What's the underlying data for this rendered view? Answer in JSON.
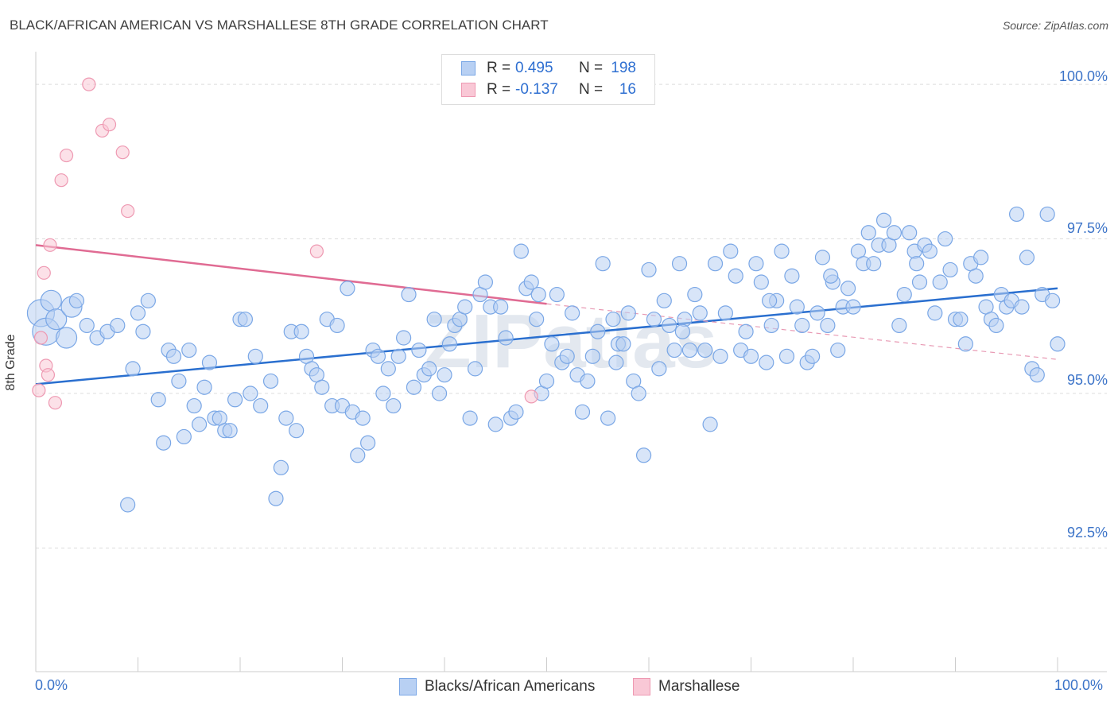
{
  "title": "BLACK/AFRICAN AMERICAN VS MARSHALLESE 8TH GRADE CORRELATION CHART",
  "source": "Source: ZipAtlas.com",
  "watermark": "ZIPatlas",
  "legend": {
    "rows": [
      {
        "r_label": "R =",
        "r_value": "0.495",
        "n_label": "N =",
        "n_value": "198",
        "color": "#7aa7e6"
      },
      {
        "r_label": "R =",
        "r_value": "-0.137",
        "n_label": "N =",
        "n_value": "16",
        "color": "#ee99b2"
      }
    ]
  },
  "bottom_legend": [
    "Blacks/African Americans",
    "Marshallese"
  ],
  "chart_data": {
    "type": "scatter",
    "title": "BLACK/AFRICAN AMERICAN VS MARSHALLESE 8TH GRADE CORRELATION CHART",
    "xlabel": "",
    "ylabel": "8th Grade",
    "xlim": [
      0,
      100
    ],
    "ylim": [
      90.5,
      100.4
    ],
    "x_tick_labels": [
      "0.0%",
      "100.0%"
    ],
    "y_ticks": [
      92.5,
      95.0,
      97.5,
      100.0
    ],
    "y_tick_labels": [
      "92.5%",
      "95.0%",
      "97.5%",
      "100.0%"
    ],
    "series": [
      {
        "name": "Blacks/African Americans",
        "color": "#7aa7e6",
        "fill": "#b8d0f3",
        "trend": {
          "x": [
            0,
            100
          ],
          "y": [
            95.15,
            96.7
          ]
        },
        "points": [
          [
            0.5,
            96.3,
            3
          ],
          [
            1,
            96.0,
            3
          ],
          [
            1.5,
            96.5,
            2
          ],
          [
            2,
            96.2,
            2
          ],
          [
            3,
            95.9,
            2
          ],
          [
            3.5,
            96.4,
            2
          ],
          [
            4,
            96.5,
            1
          ],
          [
            5,
            96.1,
            1
          ],
          [
            6,
            95.9,
            1
          ],
          [
            7,
            96.0,
            1
          ],
          [
            8,
            96.1,
            1
          ],
          [
            9,
            93.2,
            1
          ],
          [
            9.5,
            95.4,
            1
          ],
          [
            10,
            96.3,
            1
          ],
          [
            10.5,
            96.0,
            1
          ],
          [
            11,
            96.5,
            1
          ],
          [
            12,
            94.9,
            1
          ],
          [
            12.5,
            94.2,
            1
          ],
          [
            13,
            95.7,
            1
          ],
          [
            13.5,
            95.6,
            1
          ],
          [
            14,
            95.2,
            1
          ],
          [
            14.5,
            94.3,
            1
          ],
          [
            15,
            95.7,
            1
          ],
          [
            15.5,
            94.8,
            1
          ],
          [
            16,
            94.5,
            1
          ],
          [
            16.5,
            95.1,
            1
          ],
          [
            17,
            95.5,
            1
          ],
          [
            17.5,
            94.6,
            1
          ],
          [
            18,
            94.6,
            1
          ],
          [
            18.5,
            94.4,
            1
          ],
          [
            19,
            94.4,
            1
          ],
          [
            19.5,
            94.9,
            1
          ],
          [
            20,
            96.2,
            1
          ],
          [
            20.5,
            96.2,
            1
          ],
          [
            21,
            95.0,
            1
          ],
          [
            21.5,
            95.6,
            1
          ],
          [
            22,
            94.8,
            1
          ],
          [
            23,
            95.2,
            1
          ],
          [
            23.5,
            93.3,
            1
          ],
          [
            24,
            93.8,
            1
          ],
          [
            24.5,
            94.6,
            1
          ],
          [
            25,
            96.0,
            1
          ],
          [
            25.5,
            94.4,
            1
          ],
          [
            26,
            96.0,
            1
          ],
          [
            26.5,
            95.6,
            1
          ],
          [
            27,
            95.4,
            1
          ],
          [
            27.5,
            95.3,
            1
          ],
          [
            28,
            95.1,
            1
          ],
          [
            28.5,
            96.2,
            1
          ],
          [
            29,
            94.8,
            1
          ],
          [
            29.5,
            96.1,
            1
          ],
          [
            30,
            94.8,
            1
          ],
          [
            30.5,
            96.7,
            1
          ],
          [
            31,
            94.7,
            1
          ],
          [
            31.5,
            94.0,
            1
          ],
          [
            32,
            94.6,
            1
          ],
          [
            32.5,
            94.2,
            1
          ],
          [
            33,
            95.7,
            1
          ],
          [
            33.5,
            95.6,
            1
          ],
          [
            34,
            95.0,
            1
          ],
          [
            34.5,
            95.4,
            1
          ],
          [
            35,
            94.8,
            1
          ],
          [
            35.5,
            95.6,
            1
          ],
          [
            36,
            95.9,
            1
          ],
          [
            36.5,
            96.6,
            1
          ],
          [
            37,
            95.1,
            1
          ],
          [
            37.5,
            95.7,
            1
          ],
          [
            38,
            95.3,
            1
          ],
          [
            38.5,
            95.4,
            1
          ],
          [
            39,
            96.2,
            1
          ],
          [
            39.5,
            95.0,
            1
          ],
          [
            40,
            95.3,
            1
          ],
          [
            40.5,
            95.8,
            1
          ],
          [
            41,
            96.1,
            1
          ],
          [
            41.5,
            96.2,
            1
          ],
          [
            42,
            96.4,
            1
          ],
          [
            42.5,
            94.6,
            1
          ],
          [
            43,
            95.4,
            1
          ],
          [
            43.5,
            96.6,
            1
          ],
          [
            44,
            96.8,
            1
          ],
          [
            44.5,
            96.4,
            1
          ],
          [
            45,
            94.5,
            1
          ],
          [
            45.5,
            96.4,
            1
          ],
          [
            46,
            95.9,
            1
          ],
          [
            46.5,
            94.6,
            1
          ],
          [
            47,
            94.7,
            1
          ],
          [
            47.5,
            97.3,
            1
          ],
          [
            48,
            96.7,
            1
          ],
          [
            48.5,
            96.8,
            1
          ],
          [
            49,
            96.2,
            1
          ],
          [
            49.5,
            95.0,
            1
          ],
          [
            50,
            95.2,
            1
          ],
          [
            50.5,
            95.8,
            1
          ],
          [
            51,
            96.6,
            1
          ],
          [
            51.5,
            95.5,
            1
          ],
          [
            52,
            95.6,
            1
          ],
          [
            52.5,
            96.3,
            1
          ],
          [
            53,
            95.3,
            1
          ],
          [
            53.5,
            94.7,
            1
          ],
          [
            54,
            95.2,
            1
          ],
          [
            54.5,
            95.6,
            1
          ],
          [
            55,
            96.0,
            1
          ],
          [
            55.5,
            97.1,
            1
          ],
          [
            56,
            94.6,
            1
          ],
          [
            56.5,
            96.2,
            1
          ],
          [
            57,
            95.8,
            1
          ],
          [
            57.5,
            95.8,
            1
          ],
          [
            58,
            96.3,
            1
          ],
          [
            58.5,
            95.2,
            1
          ],
          [
            59,
            95.0,
            1
          ],
          [
            59.5,
            94.0,
            1
          ],
          [
            60,
            97.0,
            1
          ],
          [
            60.5,
            96.2,
            1
          ],
          [
            61,
            95.4,
            1
          ],
          [
            61.5,
            96.5,
            1
          ],
          [
            62,
            96.1,
            1
          ],
          [
            62.5,
            95.7,
            1
          ],
          [
            63,
            97.1,
            1
          ],
          [
            63.5,
            96.2,
            1
          ],
          [
            64,
            95.7,
            1
          ],
          [
            64.5,
            96.6,
            1
          ],
          [
            65,
            96.3,
            1
          ],
          [
            65.5,
            95.7,
            1
          ],
          [
            66,
            94.5,
            1
          ],
          [
            66.5,
            97.1,
            1
          ],
          [
            67,
            95.6,
            1
          ],
          [
            67.5,
            96.3,
            1
          ],
          [
            68,
            97.3,
            1
          ],
          [
            68.5,
            96.9,
            1
          ],
          [
            69,
            95.7,
            1
          ],
          [
            69.5,
            96.0,
            1
          ],
          [
            70,
            95.6,
            1
          ],
          [
            70.5,
            97.1,
            1
          ],
          [
            71,
            96.8,
            1
          ],
          [
            71.5,
            95.5,
            1
          ],
          [
            72,
            96.1,
            1
          ],
          [
            72.5,
            96.5,
            1
          ],
          [
            73,
            97.3,
            1
          ],
          [
            73.5,
            95.6,
            1
          ],
          [
            74,
            96.9,
            1
          ],
          [
            74.5,
            96.4,
            1
          ],
          [
            75,
            96.1,
            1
          ],
          [
            75.5,
            95.5,
            1
          ],
          [
            76,
            95.6,
            1
          ],
          [
            76.5,
            96.3,
            1
          ],
          [
            77,
            97.2,
            1
          ],
          [
            77.5,
            96.1,
            1
          ],
          [
            78,
            96.8,
            1
          ],
          [
            78.5,
            95.7,
            1
          ],
          [
            79,
            96.4,
            1
          ],
          [
            79.5,
            96.7,
            1
          ],
          [
            80,
            96.4,
            1
          ],
          [
            80.5,
            97.3,
            1
          ],
          [
            81,
            97.1,
            1
          ],
          [
            81.5,
            97.6,
            1
          ],
          [
            82,
            97.1,
            1
          ],
          [
            82.5,
            97.4,
            1
          ],
          [
            83,
            97.8,
            1
          ],
          [
            83.5,
            97.4,
            1
          ],
          [
            84,
            97.6,
            1
          ],
          [
            84.5,
            96.1,
            1
          ],
          [
            85,
            96.6,
            1
          ],
          [
            85.5,
            97.6,
            1
          ],
          [
            86,
            97.3,
            1
          ],
          [
            86.5,
            96.8,
            1
          ],
          [
            87,
            97.4,
            1
          ],
          [
            87.5,
            97.3,
            1
          ],
          [
            88,
            96.3,
            1
          ],
          [
            88.5,
            96.8,
            1
          ],
          [
            89,
            97.5,
            1
          ],
          [
            89.5,
            97.0,
            1
          ],
          [
            90,
            96.2,
            1
          ],
          [
            90.5,
            96.2,
            1
          ],
          [
            91,
            95.8,
            1
          ],
          [
            91.5,
            97.1,
            1
          ],
          [
            92,
            96.9,
            1
          ],
          [
            92.5,
            97.2,
            1
          ],
          [
            93,
            96.4,
            1
          ],
          [
            93.5,
            96.2,
            1
          ],
          [
            94,
            96.1,
            1
          ],
          [
            94.5,
            96.6,
            1
          ],
          [
            95,
            96.4,
            1
          ],
          [
            95.5,
            96.5,
            1
          ],
          [
            96,
            97.9,
            1
          ],
          [
            96.5,
            96.4,
            1
          ],
          [
            97,
            97.2,
            1
          ],
          [
            97.5,
            95.4,
            1
          ],
          [
            98,
            95.3,
            1
          ],
          [
            98.5,
            96.6,
            1
          ],
          [
            99,
            97.9,
            1
          ],
          [
            99.5,
            96.5,
            1
          ],
          [
            100,
            95.8,
            1
          ],
          [
            49.2,
            96.6,
            1
          ],
          [
            56.8,
            95.5,
            1
          ],
          [
            63.3,
            96.0,
            1
          ],
          [
            71.8,
            96.5,
            1
          ],
          [
            77.8,
            96.9,
            1
          ],
          [
            86.2,
            97.1,
            1
          ]
        ]
      },
      {
        "name": "Marshallese",
        "color": "#ee99b2",
        "fill": "#f9c8d6",
        "trend": {
          "x": [
            0,
            50
          ],
          "y": [
            97.4,
            96.45
          ]
        },
        "trend_dashed": {
          "x": [
            50,
            100
          ],
          "y": [
            96.45,
            95.55
          ]
        },
        "points": [
          [
            0.3,
            95.05
          ],
          [
            0.5,
            95.9
          ],
          [
            0.8,
            96.95
          ],
          [
            1,
            95.45
          ],
          [
            1.2,
            95.3
          ],
          [
            1.4,
            97.4
          ],
          [
            1.9,
            94.85
          ],
          [
            2.5,
            98.45
          ],
          [
            3,
            98.85
          ],
          [
            5.2,
            100.0
          ],
          [
            6.5,
            99.25
          ],
          [
            7.2,
            99.35
          ],
          [
            8.5,
            98.9
          ],
          [
            9,
            97.95
          ],
          [
            27.5,
            97.3
          ],
          [
            48.5,
            94.95
          ]
        ]
      }
    ]
  }
}
